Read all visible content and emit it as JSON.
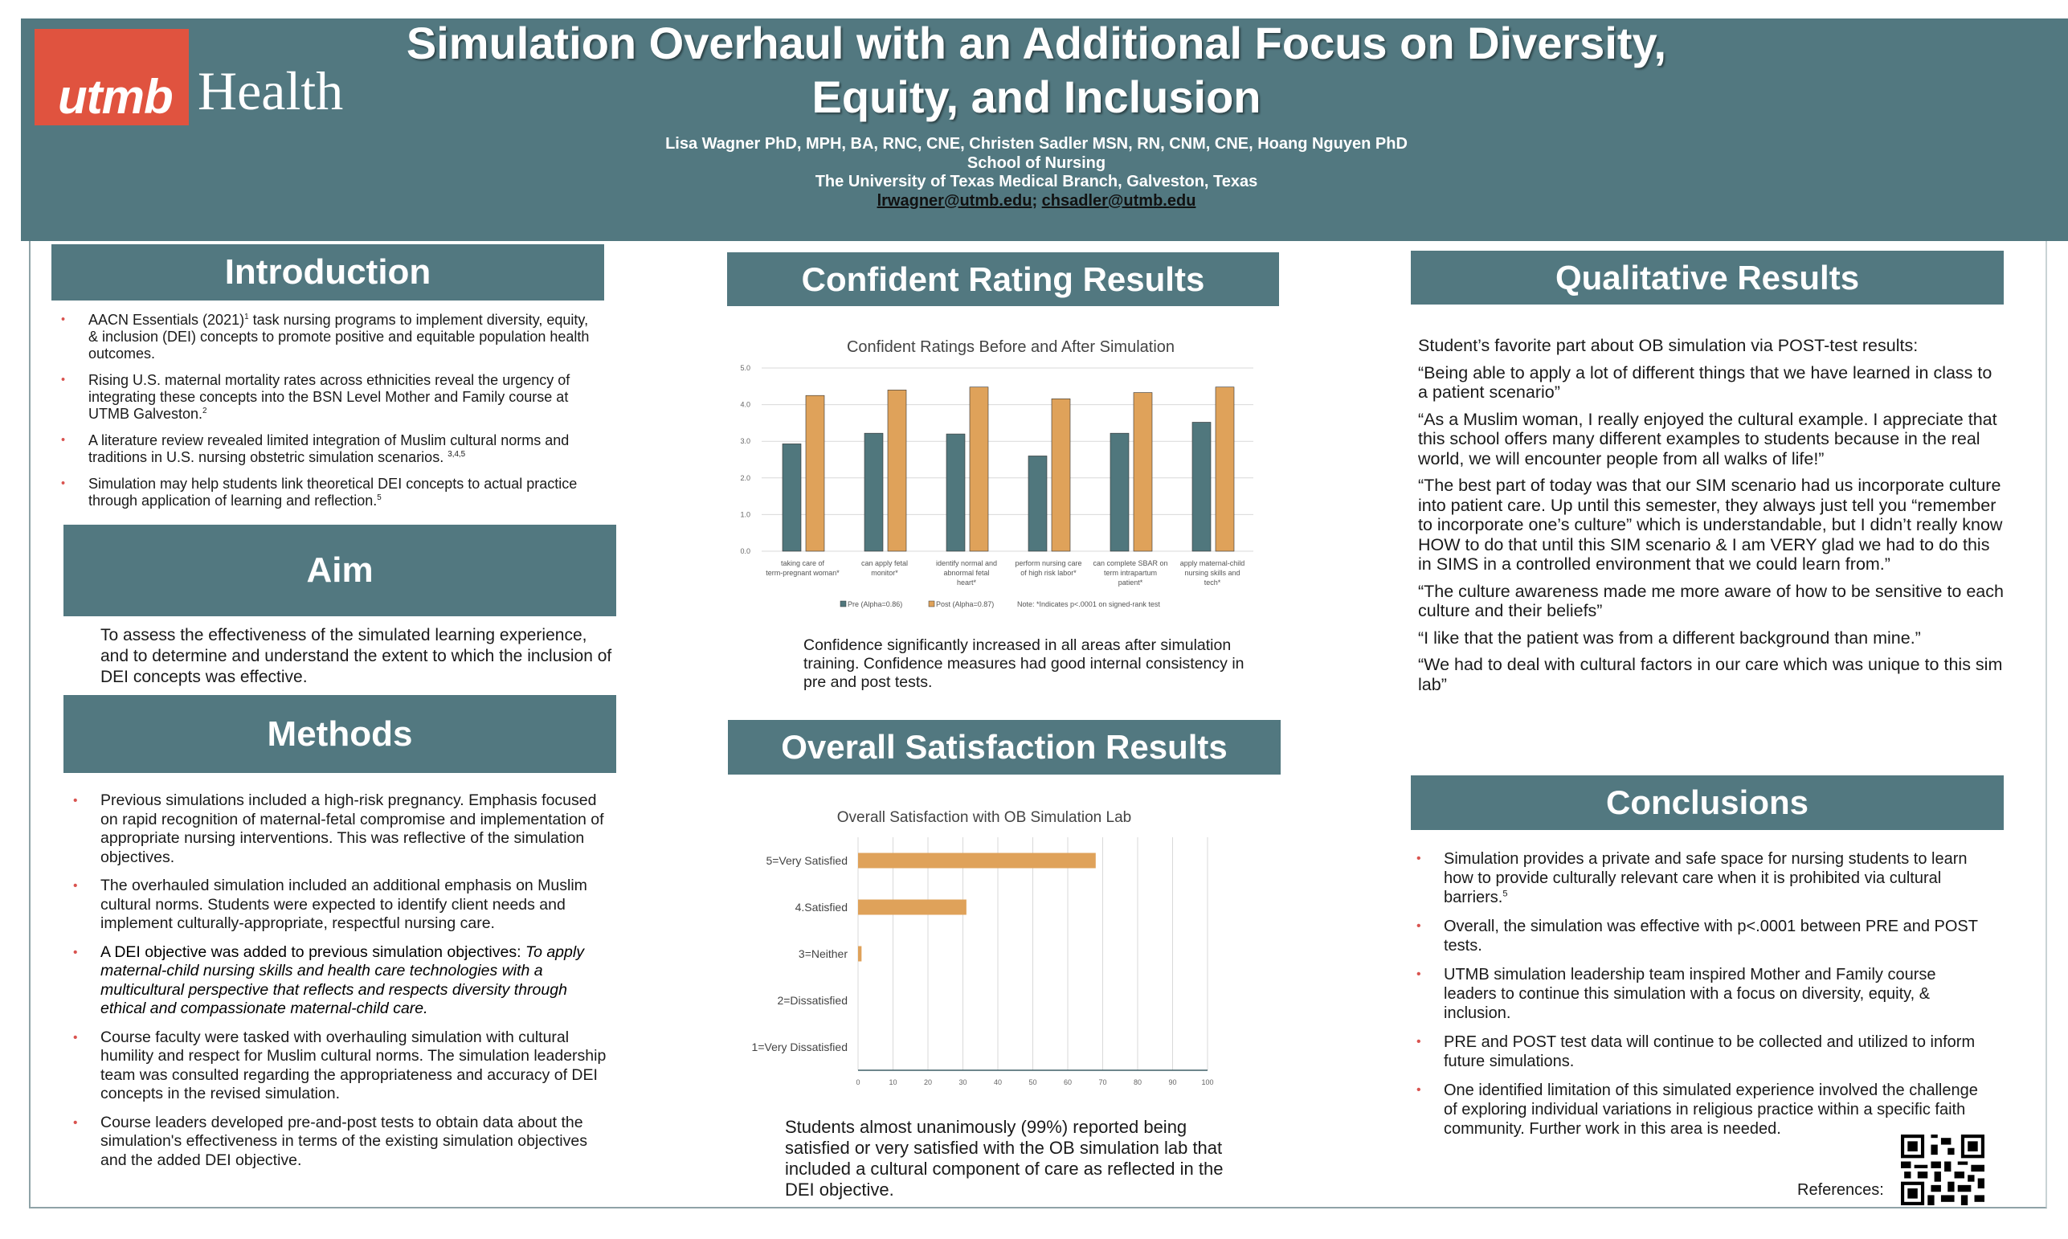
{
  "header": {
    "logo_utmb": "utmb",
    "logo_health": "Health",
    "title_line1": "Simulation Overhaul with an Additional Focus on Diversity,",
    "title_line2": "Equity, and Inclusion",
    "authors": "Lisa Wagner PhD, MPH, BA, RNC, CNE, Christen Sadler MSN, RN, CNM, CNE, Hoang Nguyen PhD",
    "school": "School of Nursing",
    "institution": "The University of Texas Medical Branch, Galveston, Texas",
    "email1": "lrwagner@utmb.edu",
    "email_sep": "; ",
    "email2": "chsadler@utmb.edu"
  },
  "introduction": {
    "heading": "Introduction",
    "bullets": [
      {
        "a": "AACN Essentials (2021)",
        "sup": "1",
        "b": " task nursing programs to implement diversity, equity, & inclusion (DEI) concepts to promote positive and equitable population health outcomes."
      },
      {
        "a": "Rising U.S. maternal mortality rates across ethnicities reveal the urgency of integrating these concepts into the BSN Level Mother and Family course at UTMB Galveston.",
        "sup": "2",
        "b": ""
      },
      {
        "a": "A literature review revealed limited integration of  Muslim cultural norms and traditions in  U.S. nursing obstetric simulation scenarios. ",
        "sup": "3,4,5",
        "b": ""
      },
      {
        "a": "Simulation may help students link theoretical DEI concepts to actual practice through application of learning and reflection.",
        "sup": "5",
        "b": ""
      }
    ]
  },
  "aim": {
    "heading": "Aim",
    "text": "To assess the effectiveness of the simulated learning experience, and to determine and understand the extent to which the inclusion of DEI concepts was effective."
  },
  "methods": {
    "heading": "Methods",
    "bullets": [
      {
        "text": "Previous simulations included a high-risk pregnancy. Emphasis focused on rapid recognition of maternal-fetal compromise and implementation of appropriate nursing interventions.  This was reflective of the simulation objectives."
      },
      {
        "text": "The overhauled simulation included an additional emphasis on  Muslim cultural norms. Students were expected to identify client needs and implement culturally-appropriate, respectful nursing care."
      },
      {
        "text": "A  DEI objective was added to previous simulation objectives: ",
        "italic": "To apply maternal-child nursing skills and health care technologies with a multicultural perspective that reflects and respects diversity through ethical and compassionate maternal-child care."
      },
      {
        "text": "Course faculty were tasked with overhauling simulation with cultural humility and respect for Muslim cultural norms. The simulation leadership team was consulted regarding the appropriateness and accuracy of DEI concepts in the revised simulation."
      },
      {
        "text": "Course leaders developed pre-and-post tests to obtain data about the simulation's effectiveness in terms of the existing simulation objectives and the added DEI objective."
      }
    ]
  },
  "confident": {
    "heading": "Confident Rating Results",
    "caption": "Confidence significantly increased in all areas after simulation training. Confidence measures had good internal consistency in pre and post tests."
  },
  "satisfaction": {
    "heading": "Overall Satisfaction Results",
    "caption": "Students almost unanimously (99%) reported being satisfied or very satisfied with the OB simulation lab that included a cultural component of care as reflected in the DEI objective."
  },
  "qualitative": {
    "heading": "Qualitative Results",
    "intro": "Student’s favorite part about OB simulation via POST-test results:",
    "quotes": [
      "“Being able to apply a lot of different things that we have learned in class to a patient scenario”",
      "“As a Muslim woman, I really enjoyed the cultural example. I appreciate that this school offers many different examples to students because in the real world, we will encounter people from all walks of life!”",
      "“The best part of today was that our SIM scenario had us incorporate culture into patient care. Up until this semester, they always just tell you “remember to incorporate one’s culture” which is understandable, but I didn’t really know HOW to do that until this SIM scenario & I am VERY glad we had to do this in SIMS in a controlled environment that we could learn from.”",
      "“The culture awareness made me more aware of how to be sensitive to each culture and their beliefs”",
      "“I like that the patient was from a different background than mine.”",
      "“We had to deal with cultural factors in our care which was unique to this sim lab”"
    ]
  },
  "conclusions": {
    "heading": "Conclusions",
    "bullets": [
      {
        "a": "Simulation provides a private and safe space for nursing students to learn how to provide culturally relevant care when it is prohibited via cultural barriers.",
        "sup": "5"
      },
      {
        "a": "Overall, the simulation was effective with p<.0001 between PRE and POST tests.",
        "sup": ""
      },
      {
        "a": "UTMB simulation leadership team inspired Mother and Family course leaders to continue this simulation with a focus on diversity, equity, & inclusion.",
        "sup": ""
      },
      {
        "a": "PRE and POST test data will continue to be collected and utilized to inform future simulations.",
        "sup": ""
      },
      {
        "a": "One identified limitation of this simulated experience involved the challenge of exploring individual variations in religious practice within a specific faith community. Further work in this area is needed.",
        "sup": ""
      }
    ],
    "references_label": "References:",
    "qr_icon": "qr-code-icon"
  },
  "colors": {
    "header_bg": "#527880",
    "logo_red": "#e0533f",
    "pre": "#50777d",
    "post": "#dfa25a",
    "bullet": "#d9534f"
  },
  "chart_data": [
    {
      "type": "bar",
      "title": "Confident Ratings Before and After Simulation",
      "categories": [
        "taking care of term-pregnant woman*",
        "can apply fetal monitor*",
        "identify normal and abnormal fetal heart*",
        "perform nursing care of high risk labor*",
        "can complete SBAR on term intrapartum patient*",
        "apply maternal-child nursing skills and tech*"
      ],
      "series": [
        {
          "name": "Pre (Alpha=0.86)",
          "color": "#50777d",
          "values": [
            2.93,
            3.22,
            3.2,
            2.6,
            3.22,
            3.52
          ]
        },
        {
          "name": "Post (Alpha=0.87)",
          "color": "#dfa25a",
          "values": [
            4.25,
            4.4,
            4.48,
            4.16,
            4.33,
            4.48
          ]
        }
      ],
      "note": "Note: *Indicates p<.0001 on signed-rank test",
      "ylim": [
        0,
        5
      ],
      "yticks": [
        "0.0",
        "1.0",
        "2.0",
        "3.0",
        "4.0",
        "5.0"
      ],
      "grid": true,
      "legend": "bottom"
    },
    {
      "type": "bar",
      "orientation": "horizontal",
      "title": "Overall Satisfaction with OB Simulation Lab",
      "categories": [
        "5=Very Satisfied",
        "4.Satisfied",
        "3=Neither",
        "2=Dissatisfied",
        "1=Very Dissatisfied"
      ],
      "values": [
        68,
        31,
        1,
        0,
        0
      ],
      "color": "#dfa25a",
      "xlim": [
        0,
        100
      ],
      "xticks": [
        "0",
        "10",
        "20",
        "30",
        "40",
        "50",
        "60",
        "70",
        "80",
        "90",
        "100"
      ],
      "grid": true
    }
  ]
}
